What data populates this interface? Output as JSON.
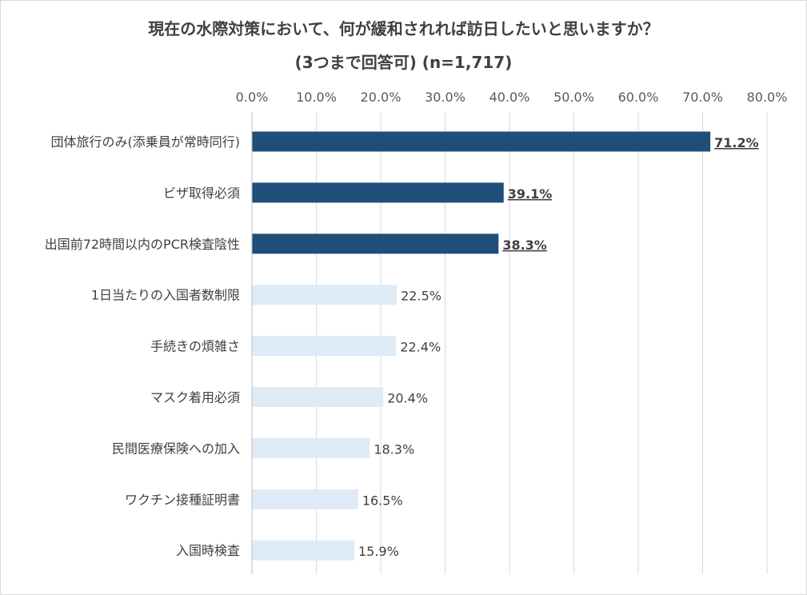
{
  "chart_data": {
    "type": "bar",
    "orientation": "horizontal",
    "title": "現在の水際対策において、何が緩和されれば訪日したいと思いますか？",
    "subtitle": "(3つまで回答可) (n=1,717)",
    "xlim": [
      0,
      80
    ],
    "x_ticks": [
      0,
      10,
      20,
      30,
      40,
      50,
      60,
      70,
      80
    ],
    "x_tick_labels": [
      "0.0%",
      "10.0%",
      "20.0%",
      "30.0%",
      "40.0%",
      "50.0%",
      "60.0%",
      "70.0%",
      "80.0%"
    ],
    "grid": true,
    "categories": [
      "団体旅行のみ(添乗員が常時同行)",
      "ビザ取得必須",
      "出国前72時間以内のPCR検査陰性",
      "1日当たりの入国者数制限",
      "手続きの煩雑さ",
      "マスク着用必須",
      "民間医療保険への加入",
      "ワクチン接種証明書",
      "入国時検査"
    ],
    "values": [
      71.2,
      39.1,
      38.3,
      22.5,
      22.4,
      20.4,
      18.3,
      16.5,
      15.9
    ],
    "value_labels": [
      "71.2%",
      "39.1%",
      "38.3%",
      "22.5%",
      "22.4%",
      "20.4%",
      "18.3%",
      "16.5%",
      "15.9%"
    ],
    "highlighted": [
      true,
      true,
      true,
      false,
      false,
      false,
      false,
      false,
      false
    ],
    "colors": {
      "highlight": "#1f4e79",
      "normal": "#deebf7",
      "grid": "#d9d9d9"
    }
  }
}
